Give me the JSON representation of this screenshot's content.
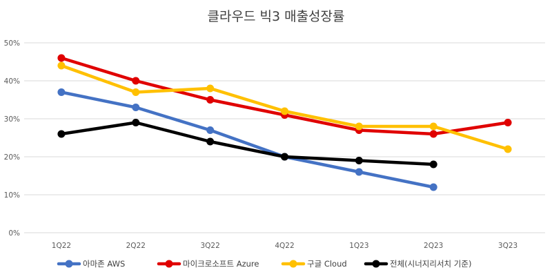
{
  "chart_data": {
    "type": "line",
    "title": "클라우드 빅3 매출성장률",
    "xlabel": "",
    "ylabel": "",
    "categories": [
      "1Q22",
      "2Q22",
      "3Q22",
      "4Q22",
      "1Q23",
      "2Q23",
      "3Q23"
    ],
    "y_ticks": [
      "0%",
      "10%",
      "20%",
      "30%",
      "40%",
      "50%"
    ],
    "ylim": [
      0,
      50
    ],
    "grid": true,
    "legend_position": "bottom",
    "series": [
      {
        "name": "아마존 AWS",
        "color": "#4472c4",
        "values": [
          37,
          33,
          27,
          20,
          16,
          12,
          null
        ]
      },
      {
        "name": "마이크로소프트 Azure",
        "color": "#e00000",
        "values": [
          46,
          40,
          35,
          31,
          27,
          26,
          29
        ]
      },
      {
        "name": "구글 Cloud",
        "color": "#ffc000",
        "values": [
          44,
          37,
          38,
          32,
          28,
          28,
          22
        ]
      },
      {
        "name": "전체(시너지리서치 기준)",
        "color": "#000000",
        "values": [
          26,
          29,
          24,
          20,
          19,
          18,
          null
        ]
      }
    ]
  }
}
